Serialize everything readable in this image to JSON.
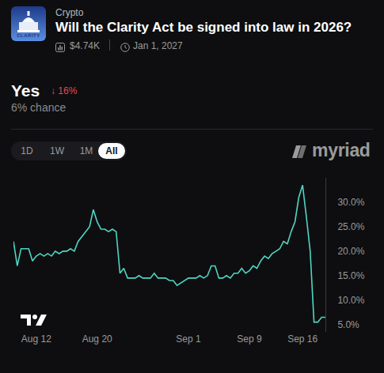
{
  "market": {
    "icon_text": "CLARITY",
    "category": "Crypto",
    "question": "Will the Clarity Act be signed into law in 2026?",
    "volume": "$4.74K",
    "end_date": "Jan 1, 2027",
    "outcome": "Yes",
    "change": "↓ 16%",
    "chance": "6% chance",
    "range_buttons": [
      "1D",
      "1W",
      "1M",
      "All"
    ],
    "selected_range": "All",
    "brand": "myriad"
  },
  "chart_data": {
    "type": "line",
    "categories": [
      null,
      null,
      null,
      null,
      null,
      null,
      "Aug 12",
      null,
      null,
      null,
      null,
      null,
      null,
      null,
      null,
      null,
      null,
      null,
      null,
      null,
      null,
      null,
      "Aug 20",
      null,
      null,
      null,
      null,
      null,
      null,
      null,
      null,
      null,
      null,
      null,
      null,
      null,
      null,
      null,
      null,
      null,
      null,
      null,
      null,
      null,
      null,
      null,
      "Sep 1",
      null,
      null,
      null,
      null,
      null,
      null,
      null,
      null,
      null,
      null,
      null,
      null,
      null,
      null,
      null,
      "Sep 9",
      null,
      null,
      null,
      null,
      null,
      null,
      null,
      null,
      null,
      null,
      null,
      null,
      null,
      "Sep 16",
      null,
      null,
      null,
      null,
      null,
      null
    ],
    "values": [
      22,
      17,
      20.5,
      20.5,
      20.5,
      18,
      19,
      19.5,
      19,
      19.5,
      19,
      20,
      19.5,
      20,
      20,
      20.5,
      20,
      22,
      23,
      24,
      25,
      28.5,
      26,
      24.5,
      24.5,
      24,
      24.5,
      24,
      15.5,
      16.5,
      14.5,
      14.5,
      14.5,
      15,
      14.5,
      14.5,
      14.5,
      15.5,
      14.5,
      14.5,
      14.5,
      14,
      14,
      13,
      13.5,
      14,
      14.5,
      14.5,
      14.5,
      15,
      14.5,
      15,
      17,
      17,
      14.5,
      14.5,
      15,
      14.5,
      15.5,
      15.5,
      16.5,
      15.5,
      16,
      17,
      16.5,
      18,
      19,
      18.5,
      19.5,
      20,
      20.5,
      22,
      21.5,
      24,
      26,
      31,
      33.5,
      27,
      20,
      5.5,
      5.5,
      6.5,
      6.5
    ],
    "color": "#4fd6c4",
    "line_style": "solid",
    "grid": false,
    "ylim": [
      3.5,
      35
    ],
    "yticks": [
      {
        "value": 5,
        "label": "5.0%"
      },
      {
        "value": 10,
        "label": "10.0%"
      },
      {
        "value": 15,
        "label": "15.0%"
      },
      {
        "value": 20,
        "label": "20.0%"
      },
      {
        "value": 25,
        "label": "25.0%"
      },
      {
        "value": 30,
        "label": "30.0%"
      }
    ]
  }
}
